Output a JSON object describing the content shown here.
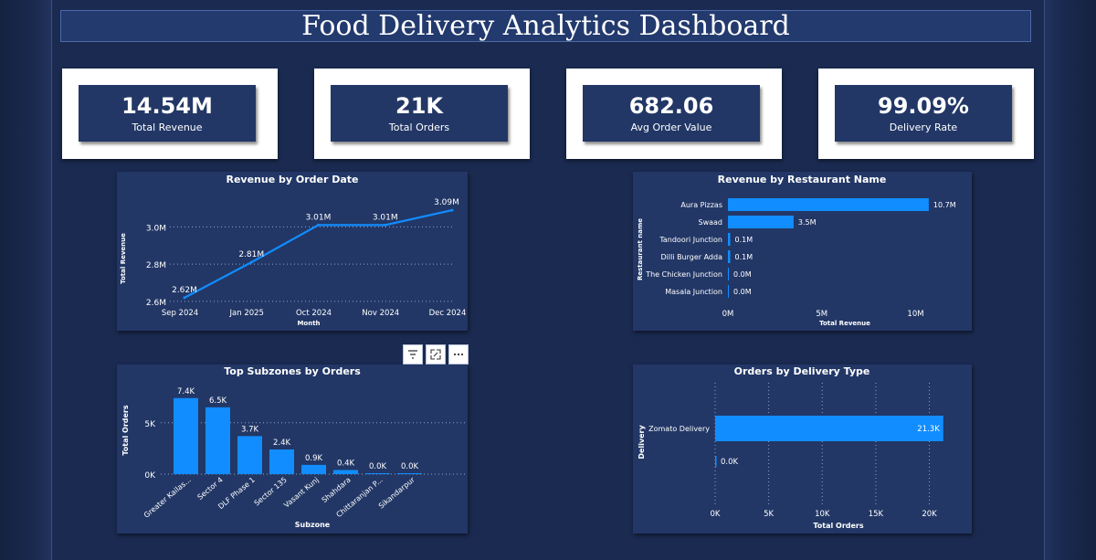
{
  "dashboard": {
    "title": "Food Delivery Analytics Dashboard"
  },
  "kpis": [
    {
      "value": "14.54M",
      "label": "Total Revenue"
    },
    {
      "value": "21K",
      "label": "Total Orders"
    },
    {
      "value": "682.06",
      "label": "Avg Order Value"
    },
    {
      "value": "99.09%",
      "label": "Delivery Rate"
    }
  ],
  "colors": {
    "bar": "#118dff",
    "panel": "#223766",
    "background": "#1a2a50",
    "text": "#ffffff",
    "grid": "#8fa3cc"
  },
  "toolbar": {
    "icons": [
      "filter-icon",
      "focus-mode-icon",
      "more-options-icon"
    ]
  },
  "chart_data": [
    {
      "type": "line",
      "title": "Revenue by Order Date",
      "xlabel": "Month",
      "ylabel": "Total Revenue",
      "categories": [
        "Sep 2024",
        "Jan 2025",
        "Oct 2024",
        "Nov 2024",
        "Dec 2024"
      ],
      "values": [
        2.62,
        2.81,
        3.01,
        3.01,
        3.09
      ],
      "data_labels": [
        "2.62M",
        "2.81M",
        "3.01M",
        "3.01M",
        "3.09M"
      ],
      "yticks": [
        2.6,
        2.8,
        3.0
      ],
      "ytick_labels": [
        "2.6M",
        "2.8M",
        "3.0M"
      ],
      "ylim": [
        2.58,
        3.11
      ],
      "grid": true
    },
    {
      "type": "bar",
      "orientation": "horizontal",
      "title": "Revenue by Restaurant Name",
      "xlabel": "Total Revenue",
      "ylabel": "Restaurant name",
      "categories": [
        "Aura Pizzas",
        "Swaad",
        "Tandoori Junction",
        "Dilli Burger Adda",
        "The Chicken Junction",
        "Masala Junction"
      ],
      "values": [
        10.7,
        3.5,
        0.1,
        0.1,
        0.0,
        0.0
      ],
      "data_labels": [
        "10.7M",
        "3.5M",
        "0.1M",
        "0.1M",
        "0.0M",
        "0.0M"
      ],
      "xticks": [
        0,
        5,
        10
      ],
      "xtick_labels": [
        "0M",
        "5M",
        "10M"
      ],
      "xlim": [
        0,
        10.9
      ],
      "grid": false
    },
    {
      "type": "bar",
      "orientation": "vertical",
      "title": "Top Subzones by Orders",
      "xlabel": "Subzone",
      "ylabel": "Total Orders",
      "categories": [
        "Greater Kailas...",
        "Sector 4",
        "DLF Phase 1",
        "Sector 135",
        "Vasant Kunj",
        "Shahdara",
        "Chittaranjan P...",
        "Sikandarpur"
      ],
      "values": [
        7.4,
        6.5,
        3.7,
        2.4,
        0.9,
        0.4,
        0.0,
        0.0
      ],
      "data_labels": [
        "7.4K",
        "6.5K",
        "3.7K",
        "2.4K",
        "0.9K",
        "0.4K",
        "0.0K",
        "0.0K"
      ],
      "yticks": [
        0,
        5
      ],
      "ytick_labels": [
        "0K",
        "5K"
      ],
      "ylim": [
        0,
        8
      ],
      "grid": true
    },
    {
      "type": "bar",
      "orientation": "horizontal",
      "title": "Orders by Delivery Type",
      "xlabel": "Total Orders",
      "ylabel": "Delivery",
      "categories": [
        "Zomato Delivery",
        ""
      ],
      "values": [
        21.3,
        0.0
      ],
      "data_labels": [
        "21.3K",
        "0.0K"
      ],
      "xticks": [
        0,
        5,
        10,
        15,
        20
      ],
      "xtick_labels": [
        "0K",
        "5K",
        "10K",
        "15K",
        "20K"
      ],
      "xlim": [
        0,
        22
      ],
      "grid": true
    }
  ]
}
